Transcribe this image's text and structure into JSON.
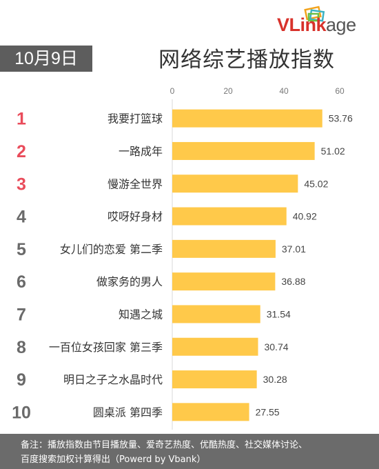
{
  "header": {
    "logo_text": "VLinkage",
    "date": "10月9日",
    "title": "网络综艺播放指数"
  },
  "colors": {
    "bar": "#ffc94a",
    "rank_top3": "#e94c5b",
    "rank_rest": "#6a6a6a",
    "date_bg": "#5d5d5d",
    "footer_bg": "#6b6b6b"
  },
  "chart_data": {
    "type": "bar",
    "orientation": "horizontal",
    "title": "网络综艺播放指数",
    "ranks": [
      "1",
      "2",
      "3",
      "4",
      "5",
      "6",
      "7",
      "8",
      "9",
      "10"
    ],
    "categories": [
      "我要打篮球",
      "一路成年",
      "慢游全世界",
      "哎呀好身材",
      "女儿们的恋爱 第二季",
      "做家务的男人",
      "知遇之城",
      "一百位女孩回家 第三季",
      "明日之子之水晶时代",
      "圆桌派 第四季"
    ],
    "values": [
      53.76,
      51.02,
      45.02,
      40.92,
      37.01,
      36.88,
      31.54,
      30.74,
      30.28,
      27.55
    ],
    "value_labels": [
      "53.76",
      "51.02",
      "45.02",
      "40.92",
      "37.01",
      "36.88",
      "31.54",
      "30.74",
      "30.28",
      "27.55"
    ],
    "xticks": [
      "0",
      "20",
      "40",
      "60"
    ],
    "xlim": [
      0,
      60
    ],
    "xlabel": "",
    "ylabel": "",
    "grid": false,
    "legend": "none"
  },
  "footer": {
    "note_line1": "备注：播放指数由节目播放量、爱奇艺热度、优酷热度、社交媒体讨论、",
    "note_line2": "百度搜索加权计算得出（Powerd by Vbank）"
  }
}
